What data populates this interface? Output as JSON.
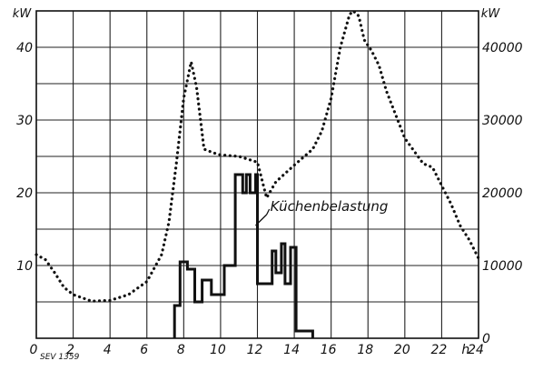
{
  "chart_data": {
    "type": "line",
    "title": "",
    "xlabel": "",
    "left_unit": "kW",
    "right_unit": "kW",
    "x_unit_suffix": "h",
    "xlim": [
      0,
      24
    ],
    "ylim_left": [
      0,
      45
    ],
    "ylim_right": [
      0,
      45000
    ],
    "grid": true,
    "x_ticks": [
      0,
      2,
      4,
      6,
      8,
      10,
      12,
      14,
      16,
      18,
      20,
      22,
      24
    ],
    "x_tick_labels": [
      "0",
      "2",
      "4",
      "6",
      "8",
      "10",
      "12",
      "14",
      "16",
      "18",
      "20",
      "22",
      "24"
    ],
    "left_ticks": [
      10,
      20,
      30,
      40
    ],
    "left_tick_labels": [
      "10",
      "20",
      "30",
      "40"
    ],
    "right_ticks": [
      0,
      10000,
      20000,
      30000,
      40000
    ],
    "right_tick_labels": [
      "0",
      "10000",
      "20000",
      "30000",
      "40000"
    ],
    "annotation": {
      "text": "Küchenbelastung",
      "x": 12.5,
      "y": 17.0
    },
    "source_code": "SEV 1359",
    "series": [
      {
        "name": "",
        "axis": "right",
        "style": "dotted",
        "color": "#111111",
        "x": [
          0,
          0.5,
          1,
          1.5,
          2,
          3,
          4,
          5,
          6,
          6.8,
          7.2,
          7.6,
          8.0,
          8.4,
          8.7,
          9.1,
          9.6,
          10,
          11,
          12,
          12.5,
          13,
          14,
          15,
          15.5,
          16,
          16.5,
          17,
          17.2,
          17.5,
          17.8,
          18.2,
          18.6,
          19,
          20,
          21,
          21.5,
          22,
          22.5,
          23,
          23.5,
          24
        ],
        "y": [
          11500,
          10800,
          9000,
          7000,
          6000,
          5100,
          5200,
          6000,
          7800,
          11500,
          16000,
          24000,
          33000,
          38000,
          34500,
          26000,
          25500,
          25200,
          25000,
          24200,
          19300,
          21500,
          23800,
          26000,
          28500,
          33000,
          40000,
          44500,
          45000,
          44300,
          41000,
          39500,
          37500,
          34000,
          27500,
          24000,
          23500,
          21000,
          18500,
          15500,
          13500,
          11000
        ]
      },
      {
        "name": "Küchenbelastung",
        "axis": "left",
        "style": "step",
        "color": "#111111",
        "x": [
          7.5,
          7.5,
          7.8,
          7.8,
          8.2,
          8.2,
          8.6,
          8.6,
          9.0,
          9.0,
          9.5,
          9.5,
          10.2,
          10.2,
          10.8,
          10.8,
          11.2,
          11.2,
          11.4,
          11.4,
          11.6,
          11.6,
          11.9,
          11.9,
          12.0,
          12.0,
          12.8,
          12.8,
          13.0,
          13.0,
          13.3,
          13.3,
          13.5,
          13.5,
          13.8,
          13.8,
          14.1,
          14.1,
          15.0,
          15.0
        ],
        "y": [
          0,
          4.5,
          4.5,
          10.5,
          10.5,
          9.5,
          9.5,
          5.0,
          5.0,
          8.0,
          8.0,
          6.0,
          6.0,
          10.0,
          10.0,
          22.5,
          22.5,
          20.0,
          20.0,
          22.5,
          22.5,
          20.0,
          20.0,
          22.5,
          22.5,
          7.5,
          7.5,
          12.0,
          12.0,
          9.0,
          9.0,
          13.0,
          13.0,
          7.5,
          7.5,
          12.5,
          12.5,
          1.0,
          1.0,
          0
        ]
      }
    ]
  }
}
